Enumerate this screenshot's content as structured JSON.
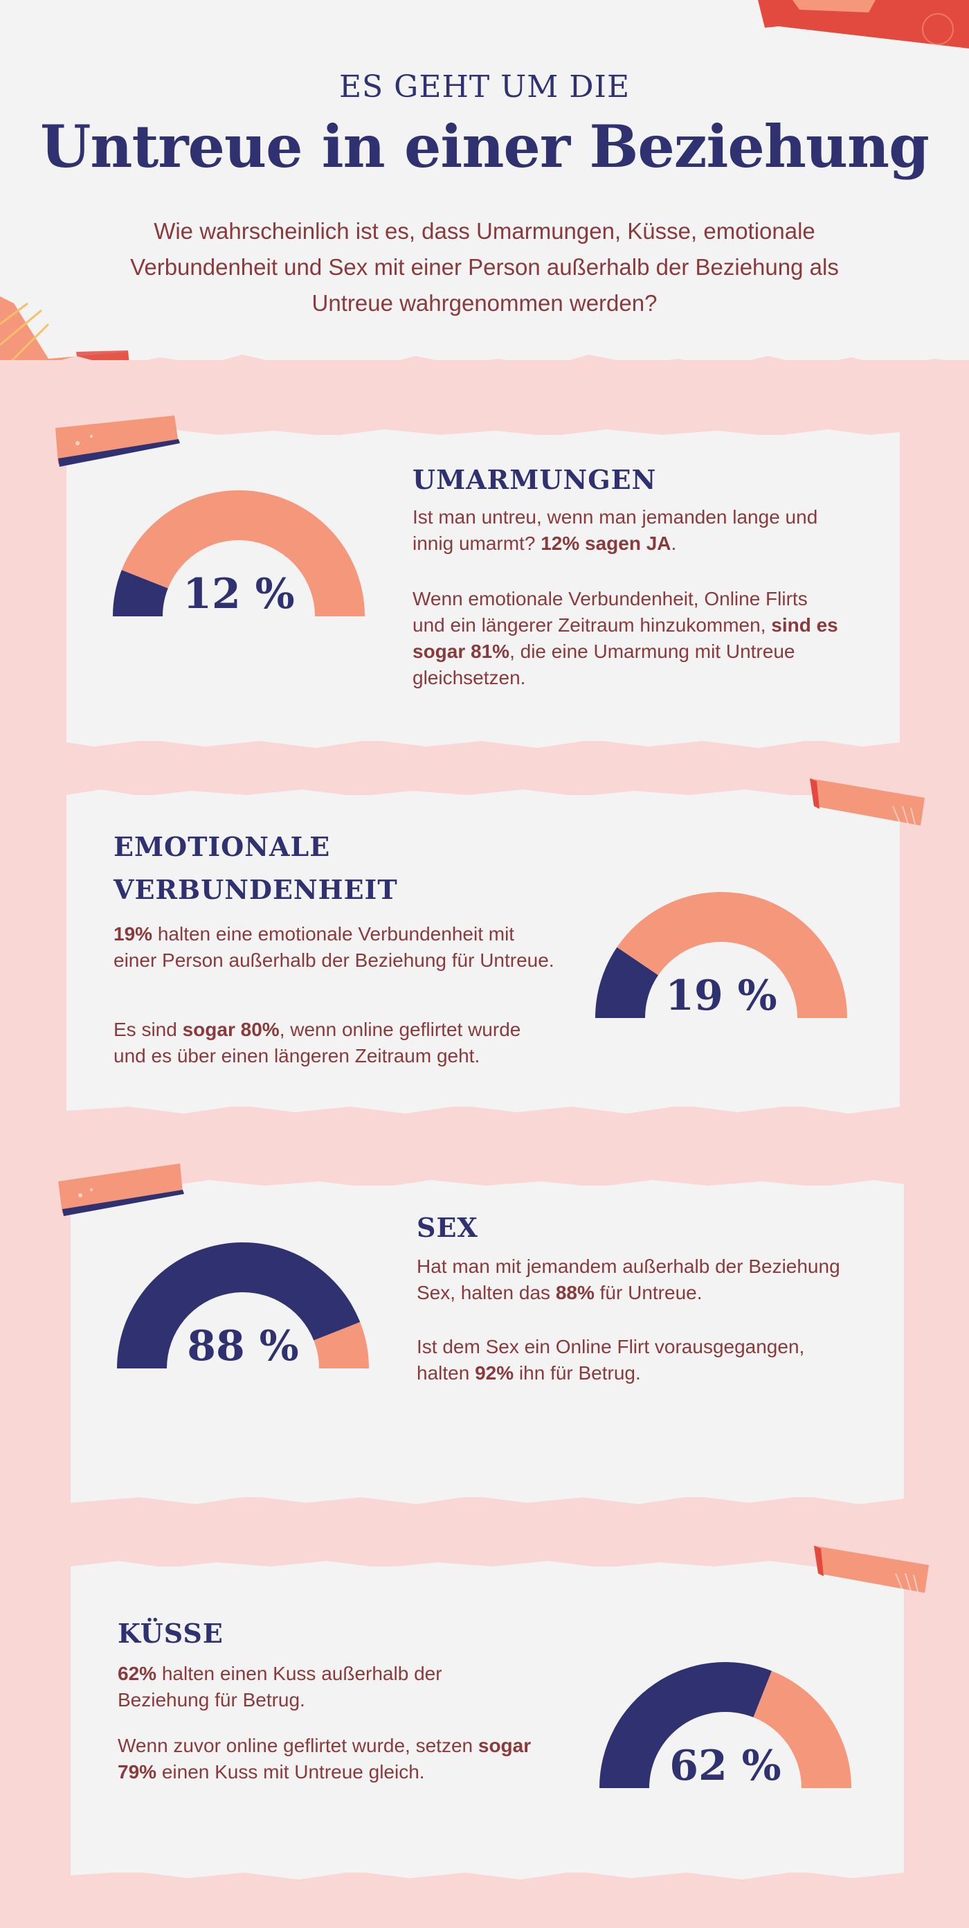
{
  "header": {
    "kicker": "ES GEHT UM DIE",
    "title": "Untreue in einer Beziehung",
    "intro": "Wie wahrscheinlich ist es, dass Umarmungen, Küsse, emotionale Verbundenheit und Sex mit einer Person außerhalb der Beziehung als Untreue wahrgenommen werden?"
  },
  "colors": {
    "navy": "#2f3170",
    "salmon": "#f4977a",
    "maroon": "#8b3a3c",
    "pink_bg": "#f9d7d5",
    "card_bg": "#f4f3f3",
    "red_accent": "#e24a40"
  },
  "sections": [
    {
      "heading": "UMARMUNGEN",
      "p1": {
        "pre": "Ist man untreu, wenn man jemanden lange und innig umarmt? ",
        "bold": "12% sagen JA",
        "post": "."
      },
      "p2": {
        "pre": "Wenn emotionale Verbundenheit, Online Flirts und ein längerer Zeitraum hinzukommen, ",
        "bold": "sind es sogar 81%",
        "post": ", die eine Umarmung mit Untreue gleichsetzen."
      }
    },
    {
      "heading_line1": "EMOTIONALE",
      "heading_line2": "VERBUNDENHEIT",
      "p1": {
        "pre": "",
        "bold": "19%",
        "post": " halten eine emotionale Verbundenheit mit einer Person außerhalb der Beziehung für Untreue."
      },
      "p2": {
        "pre": "Es sind ",
        "bold": "sogar 80%",
        "post": ", wenn online geflirtet wurde und es über einen längeren Zeitraum geht."
      }
    },
    {
      "heading": "SEX",
      "p1": {
        "pre": "Hat man mit jemandem außerhalb der Beziehung Sex, halten das ",
        "bold": "88%",
        "post": " für Untreue."
      },
      "p2": {
        "pre": "Ist dem Sex ein Online Flirt vorausgegangen, halten ",
        "bold": "92%",
        "post": " ihn für Betrug."
      }
    },
    {
      "heading": "KÜSSE",
      "p1": {
        "pre": "",
        "bold": "62%",
        "post": " halten einen Kuss außerhalb der Beziehung für Betrug."
      },
      "p2": {
        "pre": "Wenn zuvor online geflirtet wurde, setzen ",
        "bold": "sogar 79%",
        "post": " einen Kuss mit Untreue gleich."
      }
    }
  ],
  "chart_data": [
    {
      "type": "gauge",
      "title": "UMARMUNGEN",
      "value": 12,
      "max": 100,
      "label": "12 %"
    },
    {
      "type": "gauge",
      "title": "EMOTIONALE VERBUNDENHEIT",
      "value": 19,
      "max": 100,
      "label": "19 %"
    },
    {
      "type": "gauge",
      "title": "SEX",
      "value": 88,
      "max": 100,
      "label": "88 %"
    },
    {
      "type": "gauge",
      "title": "KÜSSE",
      "value": 62,
      "max": 100,
      "label": "62 %"
    }
  ]
}
